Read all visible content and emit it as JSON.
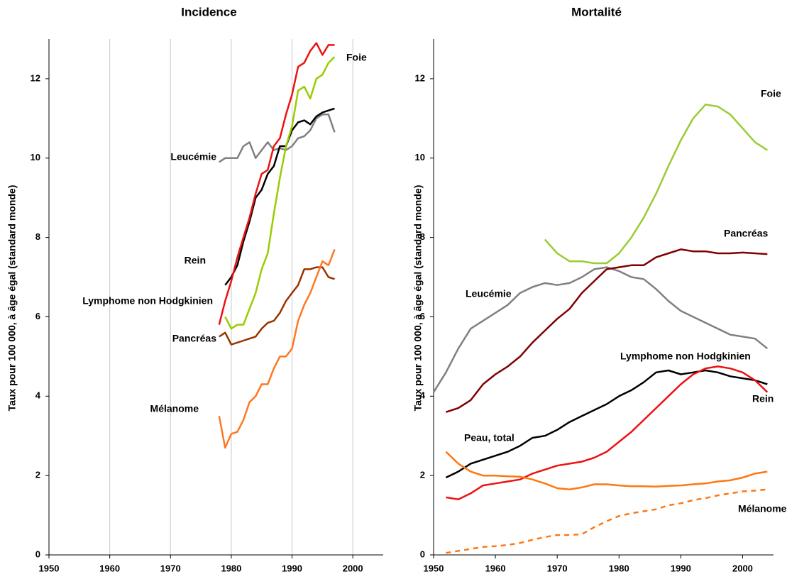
{
  "chart_data": [
    {
      "type": "line",
      "title": "Incidence",
      "ylabel": "Taux pour 100 000, à âge égal (standard monde)",
      "xlim": [
        1950,
        2005
      ],
      "ylim": [
        0,
        13
      ],
      "xticks": [
        1950,
        1960,
        1970,
        1980,
        1990,
        2000
      ],
      "yticks": [
        0,
        2,
        4,
        6,
        8,
        10,
        12
      ],
      "grid": "x",
      "series": [
        {
          "name": "Leucémie",
          "color": "#808080",
          "x": [
            1978,
            1979,
            1980,
            1981,
            1982,
            1983,
            1984,
            1985,
            1986,
            1987,
            1988,
            1989,
            1990,
            1991,
            1992,
            1993,
            1994,
            1995,
            1996,
            1997
          ],
          "values": [
            9.9,
            10.0,
            10.0,
            10.0,
            10.3,
            10.4,
            10.0,
            10.2,
            10.4,
            10.2,
            10.25,
            10.2,
            10.3,
            10.5,
            10.55,
            10.7,
            11.0,
            11.1,
            11.1,
            10.65
          ]
        },
        {
          "name": "Rein",
          "color": "#000000",
          "x": [
            1979,
            1980,
            1981,
            1982,
            1983,
            1984,
            1985,
            1986,
            1987,
            1988,
            1989,
            1990,
            1991,
            1992,
            1993,
            1994,
            1995,
            1996,
            1997
          ],
          "values": [
            6.8,
            7.0,
            7.3,
            7.9,
            8.4,
            9.0,
            9.2,
            9.6,
            9.8,
            10.3,
            10.3,
            10.7,
            10.9,
            10.95,
            10.85,
            11.05,
            11.15,
            11.2,
            11.25
          ]
        },
        {
          "name": "Lymphome non Hodgkinien",
          "color": "#ee1111",
          "x": [
            1978,
            1979,
            1980,
            1981,
            1982,
            1983,
            1984,
            1985,
            1986,
            1987,
            1988,
            1989,
            1990,
            1991,
            1992,
            1993,
            1994,
            1995,
            1996,
            1997
          ],
          "values": [
            5.8,
            6.4,
            6.9,
            7.5,
            8.0,
            8.5,
            9.1,
            9.6,
            9.7,
            10.3,
            10.5,
            11.1,
            11.6,
            12.3,
            12.4,
            12.7,
            12.9,
            12.6,
            12.85,
            12.85
          ]
        },
        {
          "name": "Foie",
          "color": "#99cc00",
          "x": [
            1979,
            1980,
            1981,
            1982,
            1983,
            1984,
            1985,
            1986,
            1987,
            1988,
            1989,
            1990,
            1991,
            1992,
            1993,
            1994,
            1995,
            1996,
            1997
          ],
          "values": [
            6.0,
            5.7,
            5.8,
            5.8,
            6.2,
            6.6,
            7.2,
            7.6,
            8.6,
            9.5,
            10.3,
            10.8,
            11.7,
            11.8,
            11.5,
            12.0,
            12.1,
            12.4,
            12.55
          ]
        },
        {
          "name": "Pancréas",
          "color": "#993300",
          "x": [
            1978,
            1979,
            1980,
            1981,
            1982,
            1983,
            1984,
            1985,
            1986,
            1987,
            1988,
            1989,
            1990,
            1991,
            1992,
            1993,
            1994,
            1995,
            1996,
            1997
          ],
          "values": [
            5.5,
            5.6,
            5.3,
            5.35,
            5.4,
            5.45,
            5.5,
            5.7,
            5.85,
            5.9,
            6.1,
            6.4,
            6.6,
            6.8,
            7.2,
            7.2,
            7.25,
            7.25,
            7.0,
            6.95
          ]
        },
        {
          "name": "Mélanome",
          "color": "#ff7722",
          "x": [
            1978,
            1979,
            1980,
            1981,
            1982,
            1983,
            1984,
            1985,
            1986,
            1987,
            1988,
            1989,
            1990,
            1991,
            1992,
            1993,
            1994,
            1995,
            1996,
            1997
          ],
          "values": [
            3.5,
            2.7,
            3.05,
            3.1,
            3.4,
            3.85,
            4.0,
            4.3,
            4.3,
            4.7,
            5.0,
            5.0,
            5.2,
            5.9,
            6.3,
            6.6,
            7.0,
            7.4,
            7.3,
            7.7
          ]
        }
      ]
    },
    {
      "type": "line",
      "title": "Mortalité",
      "ylabel": "Taux pour 100 000, à âge égal (standard monde)",
      "xlim": [
        1950,
        2005
      ],
      "ylim": [
        0,
        13
      ],
      "xticks": [
        1950,
        1960,
        1970,
        1980,
        1990,
        2000
      ],
      "yticks": [
        0,
        2,
        4,
        6,
        8,
        10,
        12
      ],
      "grid": false,
      "series": [
        {
          "name": "Leucémie",
          "color": "#808080",
          "x": [
            1950,
            1952,
            1954,
            1956,
            1958,
            1960,
            1962,
            1964,
            1966,
            1968,
            1970,
            1972,
            1974,
            1976,
            1978,
            1980,
            1982,
            1984,
            1986,
            1988,
            1990,
            1992,
            1994,
            1996,
            1998,
            2000,
            2002,
            2004
          ],
          "values": [
            4.1,
            4.6,
            5.2,
            5.7,
            5.9,
            6.1,
            6.3,
            6.6,
            6.75,
            6.85,
            6.8,
            6.85,
            7.0,
            7.2,
            7.25,
            7.15,
            7.0,
            6.95,
            6.7,
            6.4,
            6.15,
            6.0,
            5.85,
            5.7,
            5.55,
            5.5,
            5.45,
            5.2
          ]
        },
        {
          "name": "Pancréas",
          "color": "#800000",
          "x": [
            1952,
            1954,
            1956,
            1958,
            1960,
            1962,
            1964,
            1966,
            1968,
            1970,
            1972,
            1974,
            1976,
            1978,
            1980,
            1982,
            1984,
            1986,
            1988,
            1990,
            1992,
            1994,
            1996,
            1998,
            2000,
            2002,
            2004
          ],
          "values": [
            3.6,
            3.7,
            3.9,
            4.3,
            4.55,
            4.75,
            5.0,
            5.35,
            5.65,
            5.95,
            6.2,
            6.6,
            6.9,
            7.2,
            7.25,
            7.3,
            7.3,
            7.5,
            7.6,
            7.7,
            7.65,
            7.65,
            7.6,
            7.6,
            7.62,
            7.6,
            7.58
          ]
        },
        {
          "name": "Foie",
          "color": "#99cc33",
          "x": [
            1968,
            1970,
            1972,
            1974,
            1976,
            1978,
            1980,
            1982,
            1984,
            1986,
            1988,
            1990,
            1992,
            1994,
            1996,
            1998,
            2000,
            2002,
            2004
          ],
          "values": [
            7.95,
            7.6,
            7.4,
            7.4,
            7.35,
            7.35,
            7.6,
            8.0,
            8.5,
            9.1,
            9.8,
            10.45,
            11.0,
            11.35,
            11.3,
            11.1,
            10.75,
            10.4,
            10.2
          ]
        },
        {
          "name": "Lymphome non Hodgkinien",
          "color": "#000000",
          "x": [
            1952,
            1954,
            1956,
            1958,
            1960,
            1962,
            1964,
            1966,
            1968,
            1970,
            1972,
            1974,
            1976,
            1978,
            1980,
            1982,
            1984,
            1986,
            1988,
            1990,
            1992,
            1994,
            1996,
            1998,
            2000,
            2002,
            2004
          ],
          "values": [
            1.95,
            2.1,
            2.3,
            2.4,
            2.5,
            2.6,
            2.75,
            2.95,
            3.0,
            3.15,
            3.35,
            3.5,
            3.65,
            3.8,
            4.0,
            4.15,
            4.35,
            4.6,
            4.65,
            4.55,
            4.6,
            4.65,
            4.6,
            4.5,
            4.45,
            4.4,
            4.3
          ]
        },
        {
          "name": "Rein",
          "color": "#ee1111",
          "x": [
            1952,
            1954,
            1956,
            1958,
            1960,
            1962,
            1964,
            1966,
            1968,
            1970,
            1972,
            1974,
            1976,
            1978,
            1980,
            1982,
            1984,
            1986,
            1988,
            1990,
            1992,
            1994,
            1996,
            1998,
            2000,
            2002,
            2004
          ],
          "values": [
            1.45,
            1.4,
            1.55,
            1.75,
            1.8,
            1.85,
            1.9,
            2.05,
            2.15,
            2.25,
            2.3,
            2.35,
            2.45,
            2.6,
            2.85,
            3.1,
            3.4,
            3.7,
            4.0,
            4.3,
            4.55,
            4.7,
            4.75,
            4.7,
            4.6,
            4.4,
            4.1
          ]
        },
        {
          "name": "Peau, total",
          "color": "#ff7711",
          "x": [
            1952,
            1954,
            1956,
            1958,
            1960,
            1962,
            1964,
            1966,
            1968,
            1970,
            1972,
            1974,
            1976,
            1978,
            1980,
            1982,
            1984,
            1986,
            1988,
            1990,
            1992,
            1994,
            1996,
            1998,
            2000,
            2002,
            2004
          ],
          "values": [
            2.6,
            2.3,
            2.1,
            2.0,
            2.0,
            1.98,
            1.97,
            1.9,
            1.8,
            1.68,
            1.65,
            1.7,
            1.78,
            1.78,
            1.75,
            1.73,
            1.73,
            1.72,
            1.74,
            1.75,
            1.78,
            1.8,
            1.85,
            1.88,
            1.95,
            2.05,
            2.1
          ]
        },
        {
          "name": "Mélanome",
          "color": "#ff7711",
          "dash": true,
          "x": [
            1952,
            1954,
            1956,
            1958,
            1960,
            1962,
            1964,
            1966,
            1968,
            1970,
            1972,
            1974,
            1976,
            1978,
            1980,
            1982,
            1984,
            1986,
            1988,
            1990,
            1992,
            1994,
            1996,
            1998,
            2000,
            2002,
            2004
          ],
          "values": [
            0.05,
            0.1,
            0.15,
            0.2,
            0.22,
            0.25,
            0.3,
            0.38,
            0.45,
            0.5,
            0.5,
            0.52,
            0.7,
            0.85,
            0.98,
            1.05,
            1.1,
            1.15,
            1.25,
            1.3,
            1.38,
            1.43,
            1.5,
            1.55,
            1.6,
            1.62,
            1.65
          ]
        }
      ]
    }
  ]
}
